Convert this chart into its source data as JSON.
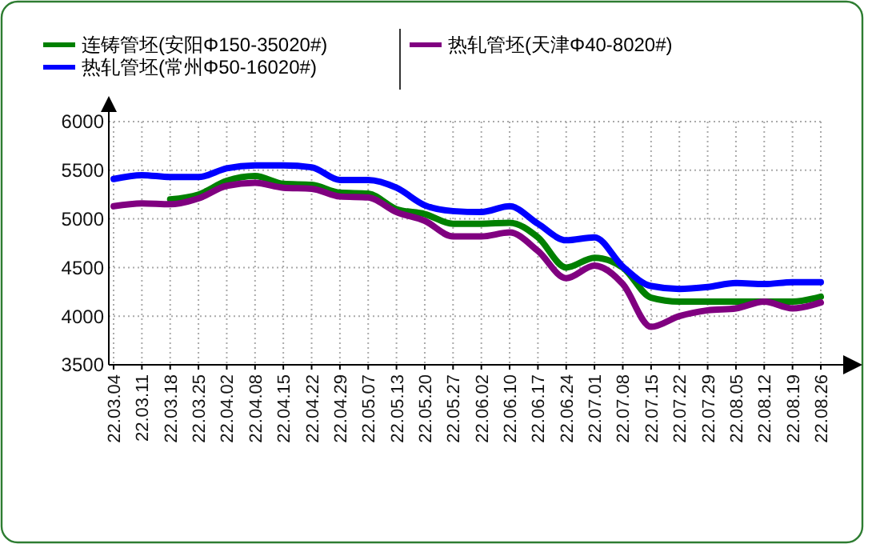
{
  "chart_data": {
    "type": "line",
    "categories": [
      "22.03.04",
      "22.03.11",
      "22.03.18",
      "22.03.25",
      "22.04.02",
      "22.04.08",
      "22.04.15",
      "22.04.22",
      "22.04.29",
      "22.05.07",
      "22.05.13",
      "22.05.20",
      "22.05.27",
      "22.06.02",
      "22.06.10",
      "22.06.17",
      "22.06.24",
      "22.07.01",
      "22.07.08",
      "22.07.15",
      "22.07.22",
      "22.07.29",
      "22.08.05",
      "22.08.12",
      "22.08.19",
      "22.08.26"
    ],
    "series": [
      {
        "name": "连铸管坯(安阳Φ150-35020#)",
        "color": "#008000",
        "values": [
          null,
          null,
          5200,
          5250,
          5390,
          5440,
          5360,
          5350,
          5270,
          5260,
          5100,
          5050,
          4950,
          4950,
          4960,
          4810,
          4500,
          4600,
          4500,
          4190,
          4150,
          4150,
          4150,
          4150,
          4150,
          4200
        ]
      },
      {
        "name": "热轧管坯(常州Φ50-16020#)",
        "color": "#0000ff",
        "values": [
          5410,
          5450,
          5430,
          5430,
          5520,
          5550,
          5550,
          5530,
          5400,
          5400,
          5320,
          5140,
          5080,
          5070,
          5130,
          4950,
          4780,
          4810,
          4510,
          4310,
          4280,
          4300,
          4340,
          4330,
          4350,
          4350
        ]
      },
      {
        "name": "热轧管坯(天津Φ40-8020#)",
        "color": "#800080",
        "values": [
          5130,
          5160,
          5150,
          5210,
          5340,
          5370,
          5320,
          5310,
          5230,
          5220,
          5070,
          4980,
          4820,
          4820,
          4860,
          4670,
          4390,
          4520,
          4330,
          3890,
          4000,
          4060,
          4080,
          4150,
          4080,
          4140
        ]
      }
    ],
    "ylim": [
      3500,
      6000
    ],
    "yticks": [
      3500,
      4000,
      4500,
      5000,
      5500,
      6000
    ],
    "grid": true,
    "legend": "top",
    "marker": "none",
    "line_style": "solid"
  }
}
